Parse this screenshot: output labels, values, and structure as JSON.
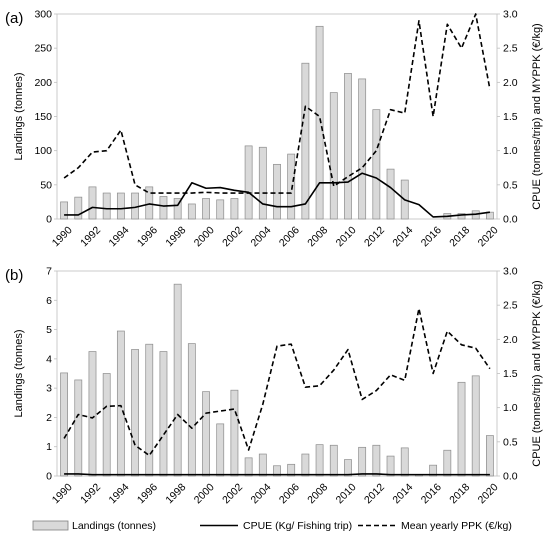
{
  "chart_data": [
    {
      "panel_label": "(a)",
      "type": "bar+line",
      "ylabel": "Landings (tonnes)",
      "y2label": "CPUE (tonnes/trip) and MYPPK (€/kg)",
      "ylim": [
        0,
        300
      ],
      "yticks": [
        0,
        50,
        100,
        150,
        200,
        250,
        300
      ],
      "y2lim": [
        0,
        3.0
      ],
      "y2ticks": [
        "0.0",
        "0.5",
        "1.0",
        "1.5",
        "2.0",
        "2.5",
        "3.0"
      ],
      "x": [
        1990,
        1991,
        1992,
        1993,
        1994,
        1995,
        1996,
        1997,
        1998,
        1999,
        2000,
        2001,
        2002,
        2003,
        2004,
        2005,
        2006,
        2007,
        2008,
        2009,
        2010,
        2011,
        2012,
        2013,
        2014,
        2015,
        2016,
        2017,
        2018,
        2019,
        2020
      ],
      "xticks": [
        "1990",
        "1992",
        "1994",
        "1996",
        "1998",
        "2000",
        "2002",
        "2004",
        "2006",
        "2008",
        "2010",
        "2012",
        "2014",
        "2016",
        "2018",
        "2020"
      ],
      "series": [
        {
          "name": "Landings (tonnes)",
          "kind": "bar",
          "axis": "left",
          "color": "#d9d9d9",
          "values": [
            25,
            32,
            47,
            38,
            38,
            38,
            47,
            33,
            30,
            22,
            30,
            28,
            30,
            107,
            105,
            80,
            95,
            228,
            282,
            185,
            213,
            205,
            160,
            73,
            57,
            0,
            0,
            8,
            8,
            12,
            10
          ]
        },
        {
          "name": "CPUE (Kg/ Fishing trip)",
          "kind": "line",
          "axis": "right",
          "dash": "solid",
          "values": [
            0.06,
            0.06,
            0.17,
            0.15,
            0.15,
            0.17,
            0.22,
            0.19,
            0.2,
            0.53,
            0.45,
            0.46,
            0.42,
            0.39,
            0.22,
            0.18,
            0.18,
            0.22,
            0.53,
            0.53,
            0.54,
            0.67,
            0.6,
            0.46,
            0.28,
            0.21,
            0.03,
            0.04,
            0.06,
            0.07,
            0.1
          ]
        },
        {
          "name": "Mean yearly PPK (€/kg)",
          "kind": "line",
          "axis": "right",
          "dash": "dashed",
          "values": [
            0.6,
            0.75,
            0.98,
            1.0,
            1.3,
            0.5,
            0.38,
            0.38,
            0.38,
            0.38,
            0.39,
            0.38,
            0.38,
            0.38,
            0.38,
            0.38,
            0.38,
            1.65,
            1.5,
            0.48,
            0.62,
            0.75,
            1.0,
            1.6,
            1.55,
            2.9,
            1.5,
            2.85,
            2.5,
            3.0,
            1.9
          ]
        }
      ]
    },
    {
      "panel_label": "(b)",
      "type": "bar+line",
      "ylabel": "Landings (tonnes)",
      "y2label": "CPUE (tonnes/trip) and MYPPK (€/kg)",
      "ylim": [
        0,
        7
      ],
      "yticks": [
        0,
        1,
        2,
        3,
        4,
        5,
        6,
        7
      ],
      "y2lim": [
        0,
        3.0
      ],
      "y2ticks": [
        "0.0",
        "0.5",
        "1.0",
        "1.5",
        "2.0",
        "2.5",
        "3.0"
      ],
      "x": [
        1990,
        1991,
        1992,
        1993,
        1994,
        1995,
        1996,
        1997,
        1998,
        1999,
        2000,
        2001,
        2002,
        2003,
        2004,
        2005,
        2006,
        2007,
        2008,
        2009,
        2010,
        2011,
        2012,
        2013,
        2014,
        2015,
        2016,
        2017,
        2018,
        2019,
        2020
      ],
      "xticks": [
        "1990",
        "1992",
        "1994",
        "1996",
        "1998",
        "2000",
        "2002",
        "2004",
        "2006",
        "2008",
        "2010",
        "2012",
        "2014",
        "2016",
        "2018",
        "2020"
      ],
      "series": [
        {
          "name": "Landings (tonnes)",
          "kind": "bar",
          "axis": "left",
          "color": "#d9d9d9",
          "values": [
            3.52,
            3.28,
            4.25,
            3.5,
            4.95,
            4.32,
            4.5,
            4.25,
            6.55,
            4.52,
            2.88,
            1.78,
            2.93,
            0.62,
            0.75,
            0.35,
            0.4,
            0.75,
            1.07,
            1.05,
            0.56,
            0.98,
            1.05,
            0.68,
            0.96,
            0.05,
            0.37,
            0.88,
            3.2,
            3.42,
            1.38
          ]
        },
        {
          "name": "CPUE (Kg/ Fishing trip)",
          "kind": "line",
          "axis": "right",
          "dash": "solid",
          "values": [
            0.03,
            0.03,
            0.02,
            0.02,
            0.02,
            0.02,
            0.02,
            0.02,
            0.02,
            0.02,
            0.02,
            0.02,
            0.02,
            0.02,
            0.02,
            0.02,
            0.02,
            0.02,
            0.02,
            0.02,
            0.02,
            0.03,
            0.03,
            0.02,
            0.02,
            0.02,
            0.02,
            0.02,
            0.02,
            0.02,
            0.02
          ]
        },
        {
          "name": "Mean yearly PPK (€/kg)",
          "kind": "line",
          "axis": "right",
          "dash": "dashed",
          "values": [
            0.55,
            0.9,
            0.85,
            1.02,
            1.03,
            0.45,
            0.3,
            0.6,
            0.9,
            0.7,
            0.92,
            0.95,
            0.98,
            0.38,
            1.05,
            1.9,
            1.93,
            1.3,
            1.32,
            1.55,
            1.85,
            1.12,
            1.25,
            1.48,
            1.4,
            2.45,
            1.5,
            2.12,
            1.92,
            1.87,
            1.57
          ]
        }
      ]
    }
  ],
  "legend": [
    {
      "label": "Landings (tonnes)",
      "kind": "bar"
    },
    {
      "label": "CPUE (Kg/ Fishing trip)",
      "kind": "solid"
    },
    {
      "label": "Mean yearly PPK (€/kg)",
      "kind": "dashed"
    }
  ]
}
